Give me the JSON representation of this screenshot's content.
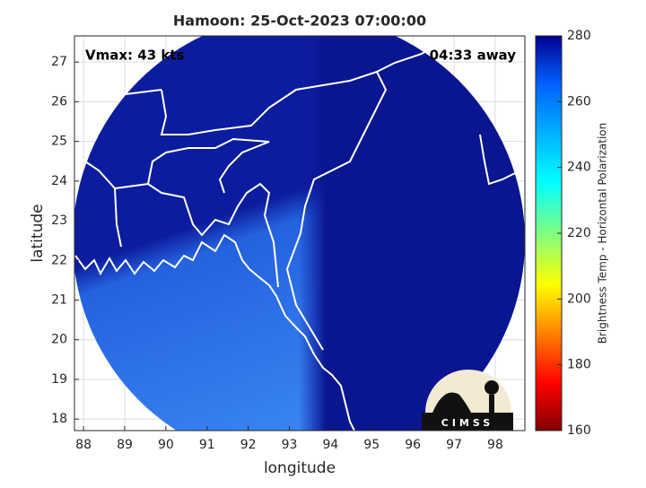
{
  "title": "Hamoon: 25-Oct-2023 07:00:00",
  "annotations": {
    "vmax": "Vmax: 43 kts",
    "time_away": "04:33 away"
  },
  "xlabel": "longitude",
  "ylabel": "latitude",
  "xlim": [
    87.78,
    98.72
  ],
  "ylim": [
    17.71,
    27.66
  ],
  "xticks": [
    88,
    89,
    90,
    91,
    92,
    93,
    94,
    95,
    96,
    97,
    98
  ],
  "yticks": [
    18,
    19,
    20,
    21,
    22,
    23,
    24,
    25,
    26,
    27
  ],
  "grid": true,
  "colorbar": {
    "label": "Brightness Temp - Horizontal Polarization",
    "lim": [
      160,
      280
    ],
    "ticks": [
      160,
      180,
      200,
      220,
      240,
      260,
      280
    ]
  },
  "logo": "CIMSS"
}
